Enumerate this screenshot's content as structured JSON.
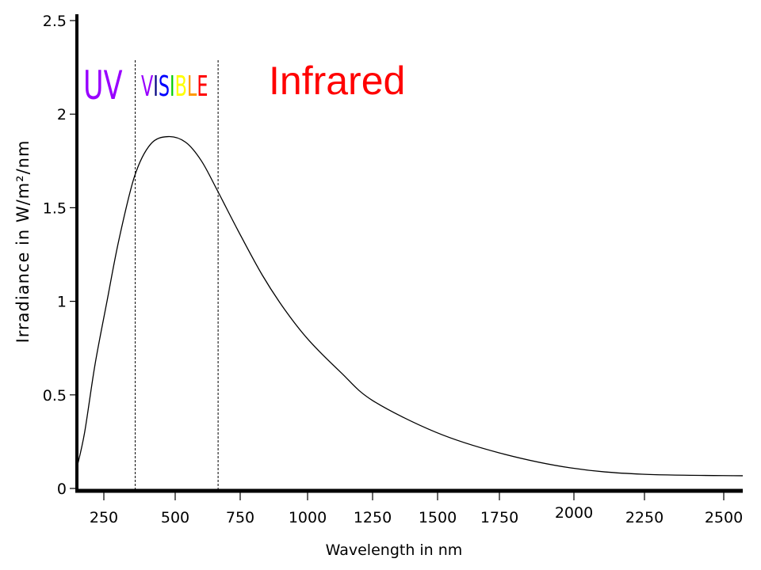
{
  "chart_data": {
    "type": "line",
    "title": "",
    "xlabel": "Wavelength in nm",
    "ylabel": "Irradiance in W/m²/nm",
    "xticks": [
      250,
      500,
      750,
      1000,
      1250,
      1500,
      1750,
      2000,
      2250,
      2500
    ],
    "yticks": [
      0,
      0.5,
      1,
      1.5,
      2,
      2.5
    ],
    "ytick_labels": [
      "0",
      "0.5",
      "1",
      "1.5",
      "2",
      "2.5"
    ],
    "xlim": [
      156,
      2560
    ],
    "ylim": [
      0,
      2.5
    ],
    "grid": false,
    "series": [
      {
        "x": [
          156,
          183,
          219,
          261,
          303,
          358,
          414,
          475,
          540,
          601,
          663,
          741,
          832,
          918,
          1006,
          1128,
          1250,
          1494,
          1750,
          1989,
          2242,
          2560
        ],
        "y": [
          0.11,
          0.3,
          0.66,
          1.0,
          1.33,
          1.67,
          1.84,
          1.88,
          1.85,
          1.75,
          1.59,
          1.38,
          1.14,
          0.95,
          0.79,
          0.62,
          0.47,
          0.3,
          0.19,
          0.11,
          0.076,
          0.068
        ],
        "color": "#000000"
      }
    ],
    "region_boundaries": [
      360,
      665
    ],
    "annotations": {
      "uv": {
        "text": "UV",
        "color": "#9900ff"
      },
      "visible": {
        "letters": [
          "V",
          "I",
          "S",
          "I",
          "B",
          "L",
          "E"
        ],
        "colors": [
          "#9900ff",
          "#000080",
          "#0000ff",
          "#00cc00",
          "#ffff00",
          "#ff9900",
          "#ff0000"
        ]
      },
      "infrared": {
        "text": "Infrared",
        "color": "#ff0000"
      }
    }
  }
}
